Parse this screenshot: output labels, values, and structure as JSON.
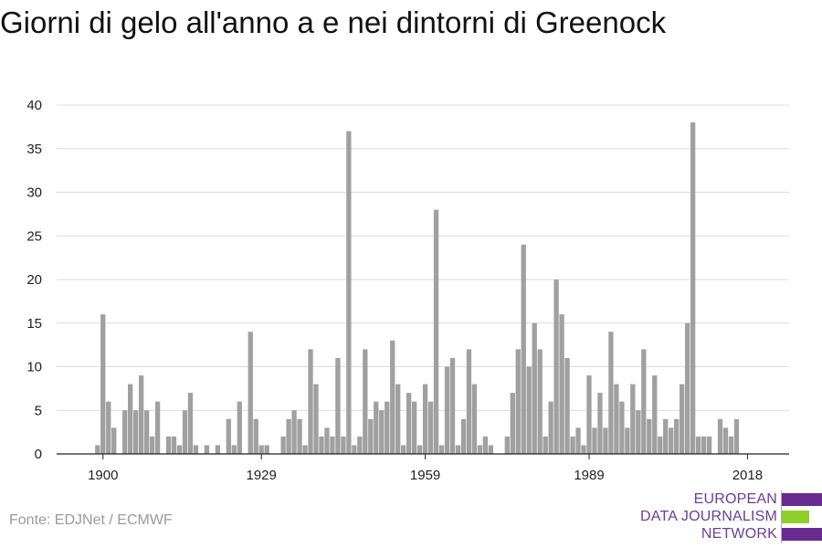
{
  "chart_data": {
    "type": "bar",
    "title": "Giorni di gelo all'anno a e nei dintorni di Greenock",
    "xlabel": "",
    "ylabel": "",
    "x_tick_labels": [
      "1900",
      "1929",
      "1959",
      "1989",
      "2018"
    ],
    "y_ticks": [
      0,
      5,
      10,
      15,
      20,
      25,
      30,
      35,
      40
    ],
    "ylim": [
      0,
      40
    ],
    "grid": true,
    "bar_color": "#a0a0a0",
    "x_start": 1899,
    "values": [
      1,
      16,
      6,
      3,
      0,
      5,
      8,
      5,
      9,
      5,
      2,
      6,
      0,
      2,
      2,
      1,
      5,
      7,
      1,
      0,
      1,
      0,
      1,
      0,
      4,
      1,
      6,
      0,
      14,
      4,
      1,
      1,
      0,
      0,
      2,
      4,
      5,
      4,
      1,
      12,
      8,
      2,
      3,
      2,
      11,
      2,
      37,
      1,
      2,
      12,
      4,
      6,
      5,
      6,
      13,
      8,
      1,
      7,
      6,
      1,
      8,
      6,
      28,
      1,
      10,
      11,
      1,
      4,
      12,
      8,
      1,
      2,
      1,
      0,
      0,
      2,
      7,
      12,
      24,
      10,
      15,
      12,
      2,
      6,
      20,
      16,
      11,
      2,
      3,
      1,
      9,
      3,
      7,
      3,
      14,
      8,
      6,
      3,
      8,
      5,
      12,
      4,
      9,
      2,
      4,
      3,
      4,
      8,
      15,
      38,
      2,
      2,
      2,
      0,
      4,
      3,
      2,
      4
    ]
  },
  "source": "Fonte: EDJNet / ECMWF",
  "logo": {
    "lines": [
      "EUROPEAN",
      "DATA JOURNALISM",
      "NETWORK"
    ],
    "colors": {
      "purple": "#6a2b91",
      "green": "#8fcf2a"
    }
  }
}
